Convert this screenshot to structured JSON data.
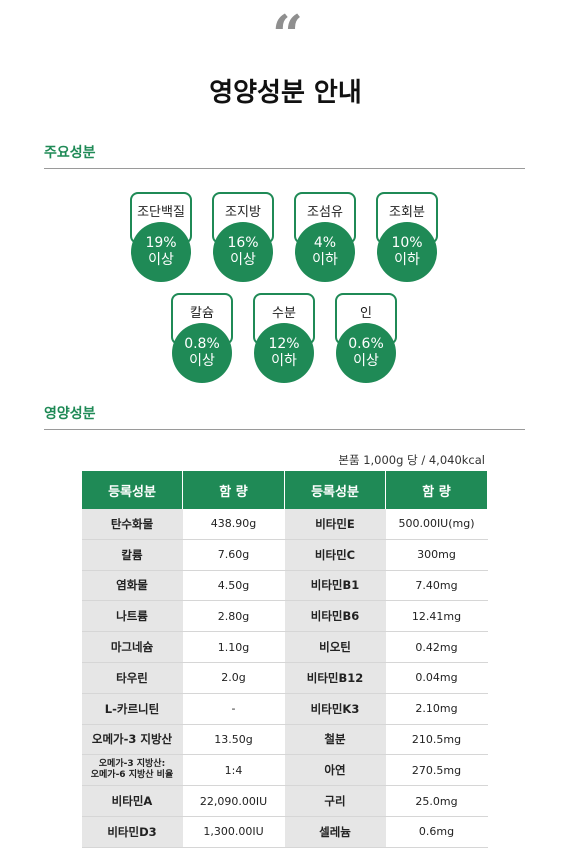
{
  "header": {
    "quote_mark": "“",
    "title": "영양성분 안내"
  },
  "main_ingredients": {
    "heading": "주요성분",
    "items": [
      {
        "label": "조단백질",
        "value": "19%",
        "note": "이상"
      },
      {
        "label": "조지방",
        "value": "16%",
        "note": "이상"
      },
      {
        "label": "조섬유",
        "value": "4%",
        "note": "이하"
      },
      {
        "label": "조회분",
        "value": "10%",
        "note": "이하"
      },
      {
        "label": "칼슘",
        "value": "0.8%",
        "note": "이상"
      },
      {
        "label": "수분",
        "value": "12%",
        "note": "이하"
      },
      {
        "label": "인",
        "value": "0.6%",
        "note": "이상"
      }
    ]
  },
  "nutrition": {
    "heading": "영양성분",
    "unit_note": "본품 1,000g 당 / 4,040kcal",
    "columns": [
      "등록성분",
      "함  량",
      "등록성분",
      "함  량"
    ],
    "rows": [
      [
        "탄수화물",
        "438.90g",
        "비타민E",
        "500.00IU(mg)"
      ],
      [
        "칼륨",
        "7.60g",
        "비타민C",
        "300mg"
      ],
      [
        "염화물",
        "4.50g",
        "비타민B1",
        "7.40mg"
      ],
      [
        "나트륨",
        "2.80g",
        "비타민B6",
        "12.41mg"
      ],
      [
        "마그네슘",
        "1.10g",
        "비오틴",
        "0.42mg"
      ],
      [
        "타우린",
        "2.0g",
        "비타민B12",
        "0.04mg"
      ],
      [
        "L-카르니틴",
        "-",
        "비타민K3",
        "2.10mg"
      ],
      [
        "오메가-3 지방산",
        "13.50g",
        "철분",
        "210.5mg"
      ],
      [
        "오메가-3 지방산:\n오메가-6 지방산 비율",
        "1:4",
        "아연",
        "270.5mg"
      ],
      [
        "비타민A",
        "22,090.00IU",
        "구리",
        "25.0mg"
      ],
      [
        "비타민D3",
        "1,300.00IU",
        "셀레늄",
        "0.6mg"
      ]
    ]
  },
  "colors": {
    "accent_green": "#1f8a56",
    "label_cell_gray": "#e6e6e6"
  }
}
